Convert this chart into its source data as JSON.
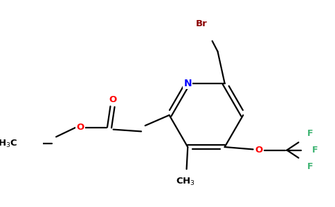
{
  "background_color": "#ffffff",
  "bond_color": "#000000",
  "colors": {
    "N": "#0000ff",
    "O": "#ff0000",
    "Br": "#8b0000",
    "F": "#3cb371",
    "C": "#000000"
  },
  "figsize": [
    4.84,
    3.0
  ],
  "dpi": 100
}
